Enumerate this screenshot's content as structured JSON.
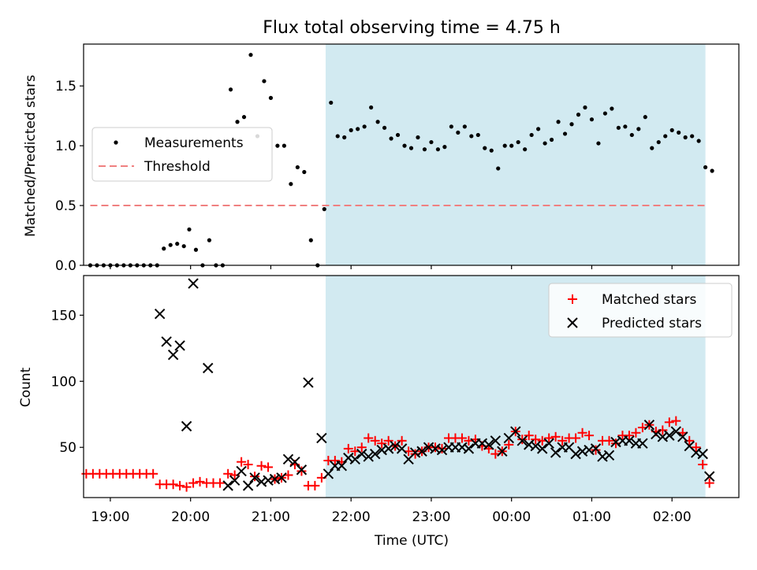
{
  "title": "Flux total observing time = 4.75 h",
  "colors": {
    "shade": "#add8e6",
    "threshold": "#f08080",
    "measurement": "#000000",
    "matched": "#ff0000",
    "predicted": "#000000"
  },
  "chart_data": [
    {
      "type": "scatter",
      "ylabel": "Matched/Predicted stars",
      "xlim": [
        "18:40",
        "02:50"
      ],
      "ylim": [
        0,
        1.85
      ],
      "yticks": [
        0.0,
        0.5,
        1.0,
        1.5
      ],
      "ytick_labels": [
        "0.0",
        "0.5",
        "1.0",
        "1.5"
      ],
      "legend_position": "center-left",
      "shaded_span": [
        "21:41",
        "02:25"
      ],
      "threshold": {
        "name": "Threshold",
        "value": 0.5,
        "x": [
          "18:45",
          "02:25"
        ],
        "style": "dashed"
      },
      "measurements": {
        "name": "Measurements",
        "points": [
          [
            "18:45",
            0
          ],
          [
            "18:50",
            0
          ],
          [
            "18:55",
            0
          ],
          [
            "19:00",
            0
          ],
          [
            "19:05",
            0
          ],
          [
            "19:10",
            0
          ],
          [
            "19:15",
            0
          ],
          [
            "19:20",
            0
          ],
          [
            "19:25",
            0
          ],
          [
            "19:30",
            0
          ],
          [
            "19:35",
            0
          ],
          [
            "19:40",
            0.14
          ],
          [
            "19:45",
            0.17
          ],
          [
            "19:50",
            0.18
          ],
          [
            "19:55",
            0.16
          ],
          [
            "19:59",
            0.3
          ],
          [
            "20:04",
            0.13
          ],
          [
            "20:09",
            0
          ],
          [
            "20:14",
            0.21
          ],
          [
            "20:19",
            0
          ],
          [
            "20:24",
            0
          ],
          [
            "20:30",
            1.47
          ],
          [
            "20:35",
            1.2
          ],
          [
            "20:40",
            1.24
          ],
          [
            "20:45",
            1.76
          ],
          [
            "20:50",
            1.08
          ],
          [
            "20:55",
            1.54
          ],
          [
            "21:00",
            1.4
          ],
          [
            "21:05",
            1.0
          ],
          [
            "21:10",
            1.0
          ],
          [
            "21:15",
            0.68
          ],
          [
            "21:20",
            0.82
          ],
          [
            "21:25",
            0.78
          ],
          [
            "21:30",
            0.21
          ],
          [
            "21:35",
            0
          ],
          [
            "21:40",
            0.47
          ],
          [
            "21:45",
            1.36
          ],
          [
            "21:50",
            1.08
          ],
          [
            "21:55",
            1.07
          ],
          [
            "22:00",
            1.13
          ],
          [
            "22:05",
            1.14
          ],
          [
            "22:10",
            1.16
          ],
          [
            "22:15",
            1.32
          ],
          [
            "22:20",
            1.2
          ],
          [
            "22:25",
            1.15
          ],
          [
            "22:30",
            1.06
          ],
          [
            "22:35",
            1.09
          ],
          [
            "22:40",
            1.0
          ],
          [
            "22:45",
            0.98
          ],
          [
            "22:50",
            1.07
          ],
          [
            "22:55",
            0.97
          ],
          [
            "23:00",
            1.03
          ],
          [
            "23:05",
            0.97
          ],
          [
            "23:10",
            0.99
          ],
          [
            "23:15",
            1.16
          ],
          [
            "23:20",
            1.11
          ],
          [
            "23:25",
            1.16
          ],
          [
            "23:30",
            1.08
          ],
          [
            "23:35",
            1.09
          ],
          [
            "23:40",
            0.98
          ],
          [
            "23:45",
            0.96
          ],
          [
            "23:50",
            0.81
          ],
          [
            "23:55",
            1.0
          ],
          [
            "00:00",
            1.0
          ],
          [
            "00:05",
            1.03
          ],
          [
            "00:10",
            0.97
          ],
          [
            "00:15",
            1.09
          ],
          [
            "00:20",
            1.14
          ],
          [
            "00:25",
            1.02
          ],
          [
            "00:30",
            1.05
          ],
          [
            "00:35",
            1.2
          ],
          [
            "00:40",
            1.1
          ],
          [
            "00:45",
            1.18
          ],
          [
            "00:50",
            1.26
          ],
          [
            "00:55",
            1.32
          ],
          [
            "01:00",
            1.22
          ],
          [
            "01:05",
            1.02
          ],
          [
            "01:10",
            1.27
          ],
          [
            "01:15",
            1.31
          ],
          [
            "01:20",
            1.15
          ],
          [
            "01:25",
            1.16
          ],
          [
            "01:30",
            1.09
          ],
          [
            "01:35",
            1.14
          ],
          [
            "01:40",
            1.24
          ],
          [
            "01:45",
            0.98
          ],
          [
            "01:50",
            1.03
          ],
          [
            "01:55",
            1.08
          ],
          [
            "02:00",
            1.13
          ],
          [
            "02:05",
            1.11
          ],
          [
            "02:10",
            1.07
          ],
          [
            "02:15",
            1.08
          ],
          [
            "02:20",
            1.04
          ],
          [
            "02:25",
            0.82
          ],
          [
            "02:30",
            0.79
          ]
        ]
      }
    },
    {
      "type": "scatter",
      "xlabel": "Time (UTC)",
      "ylabel": "Count",
      "xlim": [
        "18:40",
        "02:50"
      ],
      "ylim": [
        12,
        180
      ],
      "yticks": [
        50,
        100,
        150
      ],
      "ytick_labels": [
        "50",
        "100",
        "150"
      ],
      "xticks": [
        "19:00",
        "20:00",
        "21:00",
        "22:00",
        "23:00",
        "00:00",
        "01:00",
        "02:00"
      ],
      "xtick_labels": [
        "19:00",
        "20:00",
        "21:00",
        "22:00",
        "23:00",
        "00:00",
        "01:00",
        "02:00"
      ],
      "legend_position": "top-right",
      "shaded_span": [
        "21:41",
        "02:25"
      ],
      "series": [
        {
          "name": "Matched stars",
          "marker": "+",
          "points": [
            [
              "18:42",
              30
            ],
            [
              "18:47",
              30
            ],
            [
              "18:52",
              30
            ],
            [
              "18:57",
              30
            ],
            [
              "19:02",
              30
            ],
            [
              "19:07",
              30
            ],
            [
              "19:12",
              30
            ],
            [
              "19:17",
              30
            ],
            [
              "19:22",
              30
            ],
            [
              "19:27",
              30
            ],
            [
              "19:32",
              30
            ],
            [
              "19:37",
              22
            ],
            [
              "19:42",
              22
            ],
            [
              "19:47",
              22
            ],
            [
              "19:52",
              21
            ],
            [
              "19:57",
              20
            ],
            [
              "20:02",
              23
            ],
            [
              "20:07",
              24
            ],
            [
              "20:12",
              23
            ],
            [
              "20:17",
              23
            ],
            [
              "20:22",
              23
            ],
            [
              "20:28",
              30
            ],
            [
              "20:33",
              29
            ],
            [
              "20:38",
              39
            ],
            [
              "20:43",
              37
            ],
            [
              "20:48",
              28
            ],
            [
              "20:53",
              36
            ],
            [
              "20:58",
              35
            ],
            [
              "21:03",
              26
            ],
            [
              "21:08",
              27
            ],
            [
              "21:13",
              29
            ],
            [
              "21:18",
              37
            ],
            [
              "21:23",
              32
            ],
            [
              "21:28",
              21
            ],
            [
              "21:33",
              21
            ],
            [
              "21:38",
              27
            ],
            [
              "21:43",
              40
            ],
            [
              "21:48",
              40
            ],
            [
              "21:53",
              39
            ],
            [
              "21:58",
              49
            ],
            [
              "22:03",
              47
            ],
            [
              "22:08",
              50
            ],
            [
              "22:13",
              57
            ],
            [
              "22:18",
              55
            ],
            [
              "22:23",
              53
            ],
            [
              "22:28",
              55
            ],
            [
              "22:33",
              51
            ],
            [
              "22:38",
              55
            ],
            [
              "22:43",
              47
            ],
            [
              "22:48",
              45
            ],
            [
              "22:53",
              47
            ],
            [
              "22:58",
              50
            ],
            [
              "23:03",
              50
            ],
            [
              "23:08",
              49
            ],
            [
              "23:13",
              57
            ],
            [
              "23:18",
              57
            ],
            [
              "23:23",
              57
            ],
            [
              "23:28",
              55
            ],
            [
              "23:33",
              56
            ],
            [
              "23:38",
              51
            ],
            [
              "23:43",
              49
            ],
            [
              "23:48",
              45
            ],
            [
              "23:53",
              47
            ],
            [
              "23:58",
              52
            ],
            [
              "00:03",
              62
            ],
            [
              "00:08",
              56
            ],
            [
              "00:13",
              59
            ],
            [
              "00:18",
              56
            ],
            [
              "00:23",
              55
            ],
            [
              "00:28",
              57
            ],
            [
              "00:33",
              58
            ],
            [
              "00:38",
              55
            ],
            [
              "00:43",
              57
            ],
            [
              "00:48",
              57
            ],
            [
              "00:53",
              61
            ],
            [
              "00:58",
              59
            ],
            [
              "01:03",
              48
            ],
            [
              "01:08",
              55
            ],
            [
              "01:13",
              55
            ],
            [
              "01:18",
              53
            ],
            [
              "01:23",
              59
            ],
            [
              "01:28",
              59
            ],
            [
              "01:33",
              61
            ],
            [
              "01:38",
              65
            ],
            [
              "01:43",
              67
            ],
            [
              "01:48",
              62
            ],
            [
              "01:53",
              63
            ],
            [
              "01:58",
              69
            ],
            [
              "02:03",
              70
            ],
            [
              "02:08",
              61
            ],
            [
              "02:13",
              55
            ],
            [
              "02:18",
              50
            ],
            [
              "02:23",
              37
            ],
            [
              "02:28",
              23
            ]
          ]
        },
        {
          "name": "Predicted stars",
          "marker": "x",
          "points": [
            [
              "19:37",
              151
            ],
            [
              "19:42",
              130
            ],
            [
              "19:47",
              120
            ],
            [
              "19:52",
              127
            ],
            [
              "19:57",
              66
            ],
            [
              "20:02",
              174
            ],
            [
              "20:13",
              110
            ],
            [
              "20:28",
              21
            ],
            [
              "20:33",
              25
            ],
            [
              "20:38",
              32
            ],
            [
              "20:43",
              21
            ],
            [
              "20:48",
              27
            ],
            [
              "20:53",
              24
            ],
            [
              "20:58",
              25
            ],
            [
              "21:03",
              26
            ],
            [
              "21:08",
              27
            ],
            [
              "21:13",
              41
            ],
            [
              "21:18",
              39
            ],
            [
              "21:23",
              33
            ],
            [
              "21:28",
              99
            ],
            [
              "21:38",
              57
            ],
            [
              "21:43",
              30
            ],
            [
              "21:48",
              36
            ],
            [
              "21:53",
              36
            ],
            [
              "21:58",
              42
            ],
            [
              "22:03",
              41
            ],
            [
              "22:08",
              45
            ],
            [
              "22:13",
              43
            ],
            [
              "22:18",
              45
            ],
            [
              "22:23",
              48
            ],
            [
              "22:28",
              49
            ],
            [
              "22:33",
              51
            ],
            [
              "22:38",
              49
            ],
            [
              "22:43",
              41
            ],
            [
              "22:48",
              46
            ],
            [
              "22:53",
              47
            ],
            [
              "22:58",
              50
            ],
            [
              "23:03",
              49
            ],
            [
              "23:08",
              48
            ],
            [
              "23:13",
              50
            ],
            [
              "23:18",
              50
            ],
            [
              "23:23",
              50
            ],
            [
              "23:28",
              49
            ],
            [
              "23:33",
              53
            ],
            [
              "23:38",
              53
            ],
            [
              "23:43",
              52
            ],
            [
              "23:48",
              55
            ],
            [
              "23:53",
              47
            ],
            [
              "23:58",
              57
            ],
            [
              "00:03",
              62
            ],
            [
              "00:08",
              55
            ],
            [
              "00:13",
              52
            ],
            [
              "00:18",
              51
            ],
            [
              "00:23",
              49
            ],
            [
              "00:28",
              53
            ],
            [
              "00:33",
              46
            ],
            [
              "00:38",
              50
            ],
            [
              "00:43",
              50
            ],
            [
              "00:48",
              45
            ],
            [
              "00:53",
              47
            ],
            [
              "00:58",
              48
            ],
            [
              "01:03",
              49
            ],
            [
              "01:08",
              43
            ],
            [
              "01:13",
              44
            ],
            [
              "01:18",
              54
            ],
            [
              "01:23",
              55
            ],
            [
              "01:28",
              55
            ],
            [
              "01:33",
              53
            ],
            [
              "01:38",
              53
            ],
            [
              "01:43",
              67
            ],
            [
              "01:48",
              60
            ],
            [
              "01:53",
              58
            ],
            [
              "01:58",
              59
            ],
            [
              "02:03",
              62
            ],
            [
              "02:08",
              58
            ],
            [
              "02:13",
              51
            ],
            [
              "02:18",
              46
            ],
            [
              "02:23",
              45
            ],
            [
              "02:28",
              28
            ]
          ]
        }
      ]
    }
  ]
}
